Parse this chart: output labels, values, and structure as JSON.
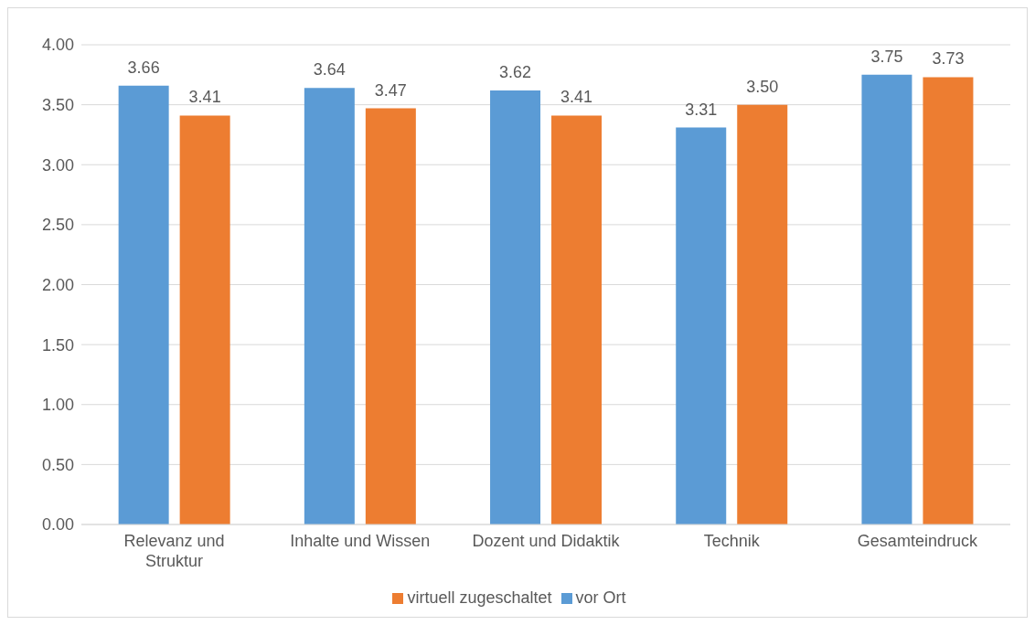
{
  "chart_data": {
    "type": "bar",
    "categories": [
      "Relevanz und Struktur",
      "Inhalte und Wissen",
      "Dozent und Didaktik",
      "Technik",
      "Gesamteindruck"
    ],
    "series": [
      {
        "name": "vor Ort",
        "color": "#5b9bd5",
        "values": [
          3.66,
          3.64,
          3.62,
          3.31,
          3.75
        ],
        "value_labels": [
          "3.66",
          "3.64",
          "3.62",
          "3.31",
          "3.75"
        ]
      },
      {
        "name": "virtuell zugeschaltet",
        "color": "#ed7d31",
        "values": [
          3.41,
          3.47,
          3.41,
          3.5,
          3.73
        ],
        "value_labels": [
          "3.41",
          "3.47",
          "3.41",
          "3.50",
          "3.73"
        ]
      }
    ],
    "ylim": [
      0,
      4
    ],
    "yticks": [
      {
        "value": 0,
        "label": "0.00"
      },
      {
        "value": 0.5,
        "label": "0.50"
      },
      {
        "value": 1,
        "label": "1.00"
      },
      {
        "value": 1.5,
        "label": "1.50"
      },
      {
        "value": 2,
        "label": "2.00"
      },
      {
        "value": 2.5,
        "label": "2.50"
      },
      {
        "value": 3,
        "label": "3.00"
      },
      {
        "value": 3.5,
        "label": "3.50"
      },
      {
        "value": 4,
        "label": "4.00"
      }
    ],
    "grid": "y",
    "legend": "bottom"
  }
}
